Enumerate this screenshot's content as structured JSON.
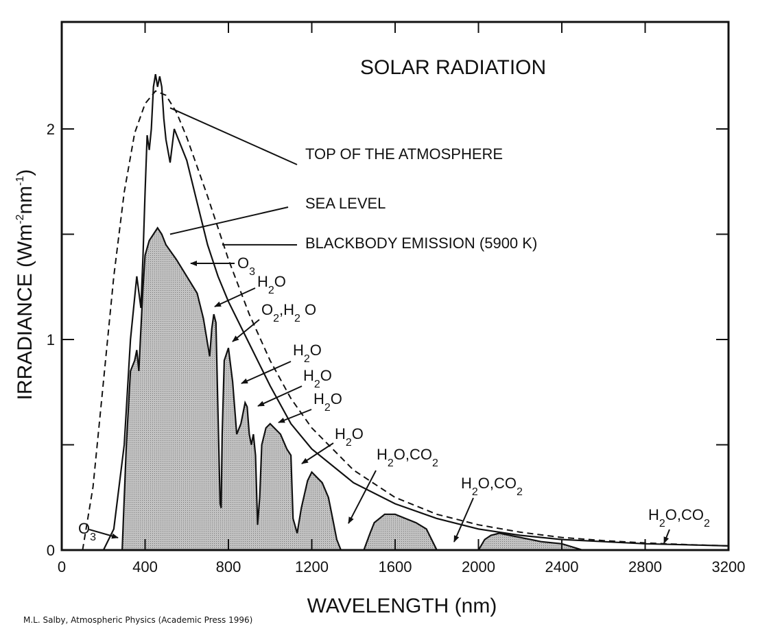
{
  "chart_data": {
    "type": "area",
    "title": "SOLAR RADIATION",
    "xlabel": "WAVELENGTH (nm)",
    "ylabel_main": "IRRADIANCE (Wm",
    "ylabel_sup1": "-2",
    "ylabel_mid": "nm",
    "ylabel_sup2": "-1",
    "ylabel_end": ")",
    "xlim": [
      0,
      3200
    ],
    "ylim": [
      0,
      2.4
    ],
    "x_ticks": [
      0,
      400,
      800,
      1200,
      1600,
      2000,
      2400,
      2800,
      3200
    ],
    "y_ticks": [
      0,
      1,
      2
    ],
    "y_minor_ticks": [
      0.5,
      1.5
    ],
    "grid": false,
    "series": [
      {
        "name": "TOP OF THE ATMOSPHERE",
        "style": "solid",
        "x": [
          200,
          250,
          300,
          330,
          360,
          380,
          390,
          400,
          410,
          420,
          430,
          440,
          450,
          460,
          470,
          480,
          490,
          500,
          520,
          540,
          560,
          600,
          650,
          700,
          750,
          800,
          900,
          1000,
          1100,
          1200,
          1400,
          1600,
          1800,
          2000,
          2200,
          2400,
          2600,
          2800,
          3000,
          3200
        ],
        "y": [
          0.0,
          0.1,
          0.5,
          1.0,
          1.3,
          1.15,
          1.4,
          1.7,
          1.97,
          1.9,
          2.0,
          2.2,
          2.26,
          2.2,
          2.25,
          2.2,
          2.05,
          1.95,
          1.84,
          2.0,
          1.95,
          1.85,
          1.65,
          1.45,
          1.3,
          1.18,
          0.98,
          0.78,
          0.6,
          0.48,
          0.32,
          0.22,
          0.15,
          0.1,
          0.07,
          0.05,
          0.04,
          0.03,
          0.025,
          0.02
        ]
      },
      {
        "name": "SEA LEVEL",
        "style": "shaded",
        "x": [
          290,
          310,
          330,
          350,
          360,
          370,
          380,
          390,
          400,
          420,
          440,
          460,
          480,
          500,
          550,
          600,
          650,
          680,
          700,
          710,
          720,
          730,
          740,
          750,
          760,
          765,
          770,
          780,
          800,
          820,
          840,
          860,
          880,
          890,
          900,
          910,
          920,
          930,
          940,
          950,
          960,
          980,
          1000,
          1050,
          1080,
          1100,
          1110,
          1130,
          1150,
          1180,
          1200,
          1250,
          1280,
          1300,
          1320,
          1340,
          1450,
          1480,
          1500,
          1550,
          1600,
          1650,
          1700,
          1750,
          1800,
          2000,
          2030,
          2060,
          2100,
          2150,
          2200,
          2250,
          2300,
          2400,
          2500
        ],
        "y": [
          0.0,
          0.5,
          0.85,
          0.9,
          0.95,
          0.85,
          1.05,
          1.25,
          1.4,
          1.47,
          1.5,
          1.53,
          1.5,
          1.45,
          1.38,
          1.3,
          1.22,
          1.1,
          0.98,
          0.92,
          1.05,
          1.12,
          1.08,
          0.65,
          0.22,
          0.2,
          0.55,
          0.9,
          0.96,
          0.8,
          0.55,
          0.6,
          0.7,
          0.68,
          0.55,
          0.5,
          0.55,
          0.45,
          0.12,
          0.25,
          0.5,
          0.58,
          0.6,
          0.55,
          0.48,
          0.45,
          0.15,
          0.08,
          0.2,
          0.33,
          0.37,
          0.32,
          0.25,
          0.15,
          0.05,
          0.0,
          0.0,
          0.08,
          0.13,
          0.17,
          0.17,
          0.15,
          0.13,
          0.1,
          0.0,
          0.0,
          0.05,
          0.07,
          0.08,
          0.07,
          0.06,
          0.05,
          0.04,
          0.03,
          0.0
        ]
      },
      {
        "name": "BLACKBODY EMISSION (5900 K)",
        "style": "dashed",
        "x": [
          100,
          150,
          200,
          250,
          300,
          350,
          400,
          450,
          500,
          550,
          600,
          700,
          800,
          900,
          1000,
          1100,
          1200,
          1400,
          1600,
          1800,
          2000,
          2200,
          2400,
          2600,
          2800,
          3000,
          3200
        ],
        "y": [
          0.0,
          0.3,
          0.8,
          1.3,
          1.7,
          1.98,
          2.12,
          2.18,
          2.16,
          2.08,
          1.96,
          1.68,
          1.38,
          1.12,
          0.9,
          0.72,
          0.58,
          0.38,
          0.25,
          0.17,
          0.12,
          0.085,
          0.06,
          0.045,
          0.034,
          0.026,
          0.02
        ]
      }
    ],
    "legend_labels": [
      {
        "text": "TOP OF THE ATMOSPHERE"
      },
      {
        "text": "SEA LEVEL"
      },
      {
        "text": "BLACKBODY EMISSION (5900 K)"
      }
    ],
    "absorption_labels": [
      {
        "name": "o3-low",
        "main": "O",
        "sub": "3",
        "target_nm": 270
      },
      {
        "name": "o3-uv",
        "main": "O",
        "sub": "3",
        "target_nm": 600
      },
      {
        "name": "h2o-720",
        "pre": "H",
        "sub": "2",
        "post": "O",
        "target_nm": 720
      },
      {
        "name": "o2-h2o-760",
        "pre": "O",
        "sub": "2",
        "post": ",H",
        "sub2": "2",
        "post2": " O",
        "target_nm": 780
      },
      {
        "name": "h2o-820",
        "pre": "H",
        "sub": "2",
        "post": "O",
        "target_nm": 830
      },
      {
        "name": "h2o-900",
        "pre": "H",
        "sub": "2",
        "post": "O",
        "target_nm": 900
      },
      {
        "name": "h2o-1000",
        "pre": "H",
        "sub": "2",
        "post": "O",
        "target_nm": 980
      },
      {
        "name": "h2o-1130",
        "pre": "H",
        "sub": "2",
        "post": "O",
        "target_nm": 1130
      },
      {
        "name": "h2o-co2-1400",
        "pre": "H",
        "sub": "2",
        "post": "O,CO",
        "sub2": "2",
        "target_nm": 1380
      },
      {
        "name": "h2o-co2-1900",
        "pre": "H",
        "sub": "2",
        "post": "O,CO",
        "sub2": "2",
        "target_nm": 1860
      },
      {
        "name": "h2o-co2-2800",
        "pre": "H",
        "sub": "2",
        "post": "O,CO",
        "sub2": "2",
        "target_nm": 2860
      }
    ]
  },
  "credit": "M.L. Salby, Atmospheric Physics (Academic Press 1996)"
}
